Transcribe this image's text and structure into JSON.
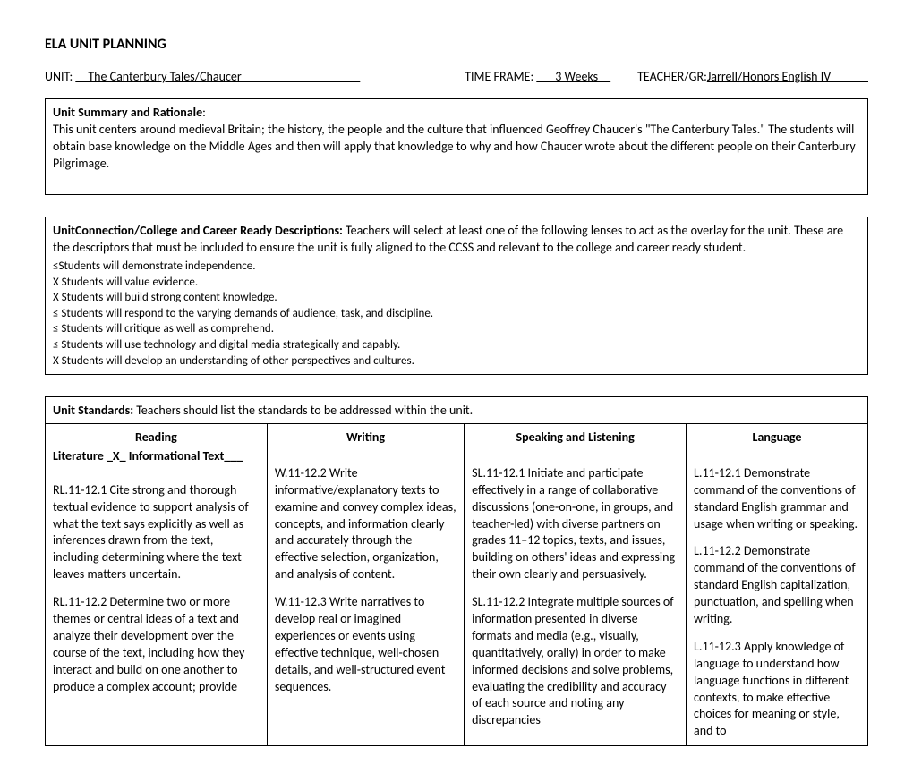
{
  "title": "ELA UNIT PLANNING",
  "meta": {
    "unit_label": "UNIT: ",
    "unit_value": "__The Canterbury Tales/Chaucer___________________",
    "time_label": "TIME FRAME: ",
    "time_value": "___3 Weeks__",
    "teacher_label": "TEACHER/GR:",
    "teacher_value": "Jarrell/Honors English IV______"
  },
  "summary": {
    "heading": "Unit Summary and Rationale",
    "body": "This unit centers around medieval Britain; the history, the people and the culture that influenced Geoffrey Chaucer's \"The Canterbury Tales.\" The students will obtain base knowledge on the Middle Ages and then will apply that knowledge to why and how Chaucer wrote about the different people on their Canterbury Pilgrimage."
  },
  "connection": {
    "heading": "UnitConnection/College and Career Ready Descriptions:",
    "body": " Teachers will select at least one of the following lenses to act as the overlay for the unit.  These are the descriptors that must be included to ensure the unit is fully aligned to the CCSS and relevant to the college and career ready student.",
    "items": [
      "≤Students will demonstrate independence.",
      "  X Students will value evidence.",
      "  X Students will build strong content knowledge.",
      "≤ Students will respond to the varying demands of audience, task, and discipline.",
      "≤ Students will critique as well as comprehend.",
      "≤ Students will use technology and digital media strategically and capably.",
      "  X Students will develop an understanding of other perspectives and cultures."
    ]
  },
  "standards": {
    "heading": "Unit Standards:",
    "body": " Teachers should list the standards to be addressed within the unit.",
    "columns": {
      "reading": {
        "title": "Reading",
        "subtitle": "Literature _X_  Informational Text___",
        "p1": "RL.11-12.1 Cite strong and thorough textual evidence to support analysis of what the text says explicitly as well as inferences drawn from the text, including determining where the text leaves matters uncertain.",
        "p2": "RL.11-12.2 Determine two or more themes or central ideas of a text and analyze their development over the course of the text, including how they interact and build on one another to produce a complex account; provide"
      },
      "writing": {
        "title": "Writing",
        "p1": "W.11-12.2 Write informative/explanatory texts to examine and convey complex ideas, concepts, and information clearly and accurately through the effective selection, organization, and analysis of content.",
        "p2": "W.11-12.3 Write narratives to develop real or imagined experiences or events using effective technique, well-chosen details, and well-structured event sequences."
      },
      "speaking": {
        "title": "Speaking and Listening",
        "p1": "SL.11-12.1 Initiate and participate effectively in a range of collaborative discussions (one-on-one, in groups, and teacher-led) with diverse partners on grades 11–12 topics, texts, and issues, building on others' ideas and expressing their own clearly and persuasively.",
        "p2": "SL.11-12.2 Integrate multiple sources of information presented in diverse formats and media (e.g., visually, quantitatively, orally) in order to make informed decisions and solve problems, evaluating the credibility and accuracy of each source and noting any discrepancies"
      },
      "language": {
        "title": "Language",
        "p1": "L.11-12.1 Demonstrate command of the conventions of standard English grammar and usage when writing or speaking.",
        "p2": "L.11-12.2 Demonstrate command of the conventions of standard English capitalization, punctuation, and spelling when writing.",
        "p3": "L.11-12.3 Apply knowledge of language to understand how language functions in different contexts, to make effective choices for meaning or style, and to"
      }
    }
  }
}
